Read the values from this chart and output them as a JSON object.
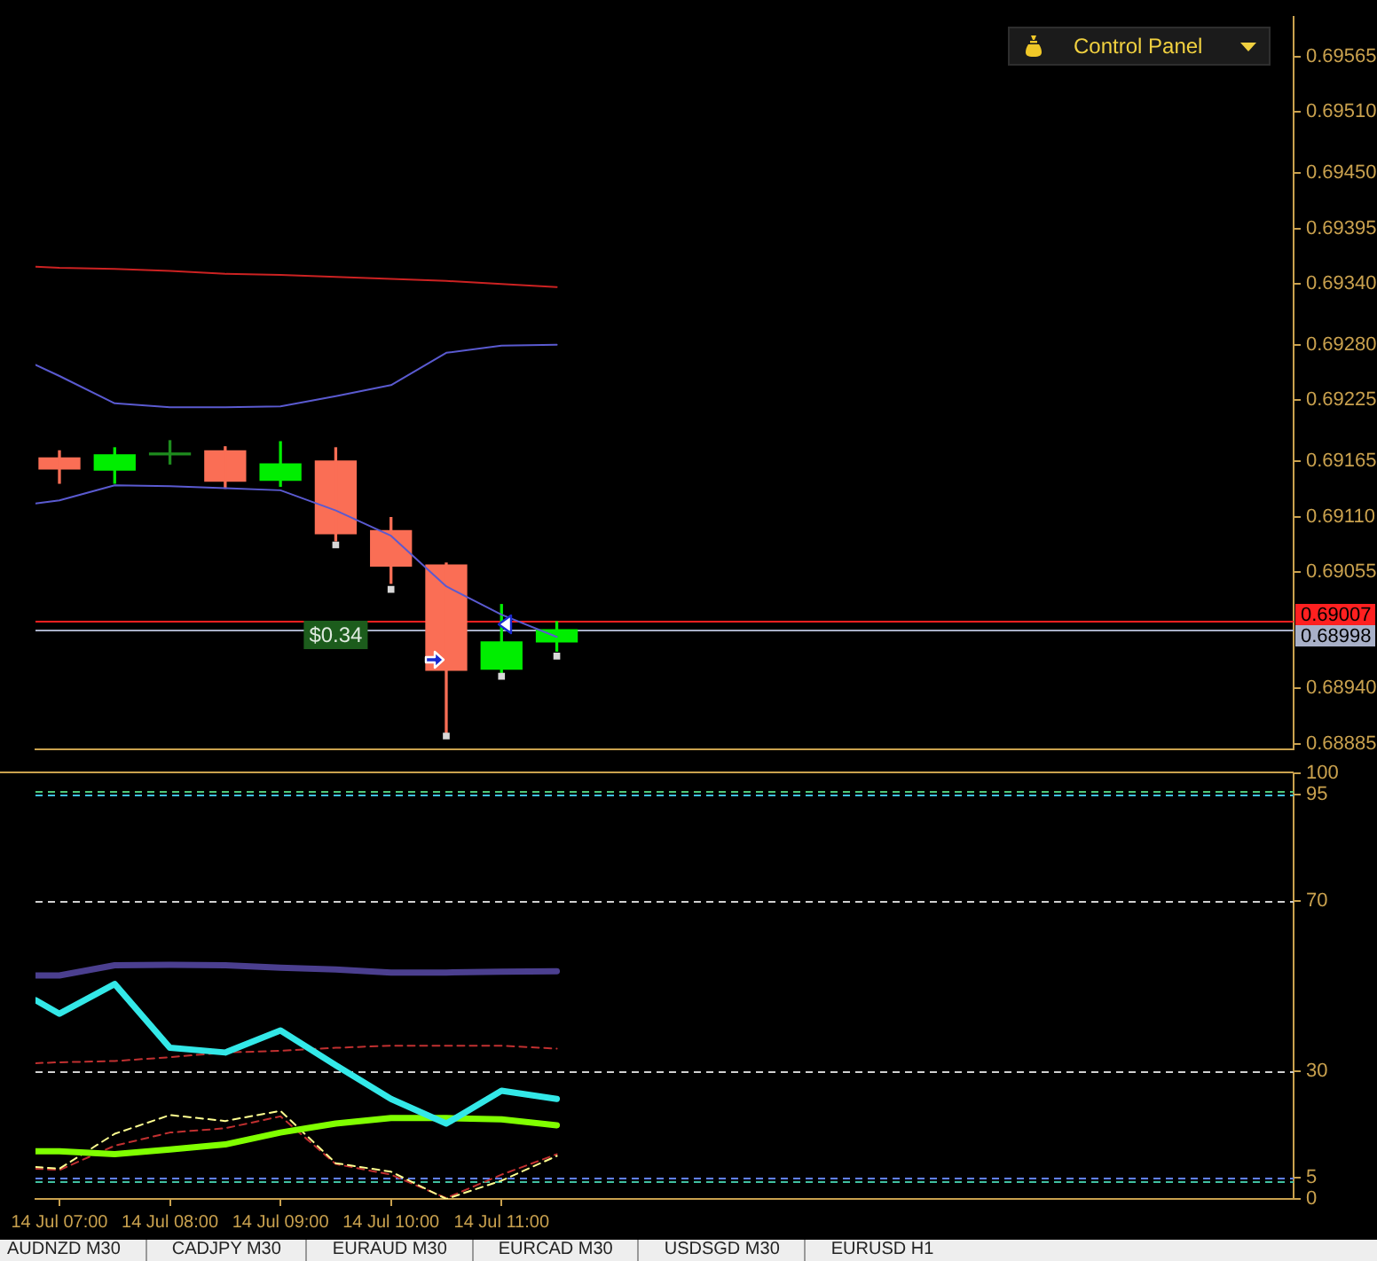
{
  "chart_data": [
    {
      "type": "candlestick",
      "x": [
        "--07-14T07:00",
        "--07-14T07:30",
        "--07-14T08:00",
        "--07-14T08:30",
        "--07-14T09:00",
        "--07-14T09:30",
        "--07-14T10:00",
        "--07-14T10:30",
        "--07-14T11:00",
        "--07-14T11:30"
      ],
      "ohlc": [
        [
          0.69168,
          0.69175,
          0.69143,
          0.69157
        ],
        [
          0.69156,
          0.69178,
          0.69143,
          0.69171
        ],
        [
          0.69171,
          0.69185,
          0.69162,
          0.69172
        ],
        [
          0.69175,
          0.69179,
          0.69138,
          0.69145
        ],
        [
          0.69146,
          0.69184,
          0.6914,
          0.69162
        ],
        [
          0.69165,
          0.69178,
          0.69086,
          0.69093
        ],
        [
          0.69096,
          0.69109,
          0.69044,
          0.69061
        ],
        [
          0.69062,
          0.69064,
          0.68896,
          0.68958
        ],
        [
          0.68959,
          0.69023,
          0.68951,
          0.68986
        ],
        [
          0.68986,
          0.69006,
          0.68977,
          0.68998
        ]
      ],
      "colors": [
        "#fa6e55",
        "#00ee00",
        "#1e8c1e",
        "#fa6e55",
        "#00ee00",
        "#fa6e55",
        "#fa6e55",
        "#fa6e55",
        "#00ee00",
        "#00ee00"
      ],
      "series": [
        {
          "type": "line",
          "color": "#cc2222",
          "x": [
            "--07-14T06:47",
            "--07-14T07:00",
            "--07-14T07:30",
            "--07-14T08:00",
            "--07-14T08:30",
            "--07-14T09:00",
            "--07-14T09:30",
            "--07-14T10:00",
            "--07-14T10:30",
            "--07-14T11:00",
            "--07-14T11:30"
          ],
          "values": [
            0.69357,
            0.69356,
            0.69355,
            0.69353,
            0.6935,
            0.69349,
            0.69347,
            0.69345,
            0.69343,
            0.6934,
            0.69337
          ]
        },
        {
          "type": "line",
          "color": "#5a5ad0",
          "x": [
            "--07-14T06:47",
            "--07-14T07:00",
            "--07-14T07:30",
            "--07-14T08:00",
            "--07-14T08:30",
            "--07-14T09:00",
            "--07-14T09:30",
            "--07-14T10:00",
            "--07-14T10:30",
            "--07-14T11:00",
            "--07-14T11:30"
          ],
          "values": [
            0.6926,
            0.69249,
            0.69222,
            0.69218,
            0.69218,
            0.69219,
            0.69229,
            0.6924,
            0.69272,
            0.69279,
            0.6928
          ]
        },
        {
          "type": "line",
          "color": "#5a5ad0",
          "x": [
            "--07-14T06:47",
            "--07-14T07:00",
            "--07-14T07:30",
            "--07-14T08:00",
            "--07-14T08:30",
            "--07-14T09:00",
            "--07-14T09:30",
            "--07-14T10:00",
            "--07-14T10:30",
            "--07-14T11:00",
            "--07-14T11:30"
          ],
          "values": [
            0.69123,
            0.69126,
            0.69141,
            0.6914,
            0.69138,
            0.69136,
            0.69116,
            0.69091,
            0.69041,
            0.69013,
            0.68991
          ]
        },
        {
          "type": "scatter",
          "color": "#d8d8d8",
          "marker": "square",
          "x": [
            "--07-14T09:30",
            "--07-14T10:00",
            "--07-14T10:30",
            "--07-14T11:00",
            "--07-14T11:30"
          ],
          "values": [
            0.69082,
            0.69038,
            0.68893,
            0.68952,
            0.68972
          ]
        }
      ],
      "xlim": [
        "--07-14T06:47",
        "--07-14T18:10"
      ],
      "ylim": [
        0.6888,
        0.69604
      ],
      "yticks": [
        0.68885,
        {
          "value": 0.6894,
          "label": "0.68940"
        },
        0.69055,
        {
          "value": 0.6911,
          "label": "0.69110"
        },
        0.69165,
        0.69225,
        {
          "value": 0.6928,
          "label": "0.69280"
        },
        {
          "value": 0.6934,
          "label": "0.69340"
        },
        0.69395,
        {
          "value": 0.6945,
          "label": "0.69450"
        },
        {
          "value": 0.6951,
          "label": "0.69510"
        },
        0.69565
      ],
      "tick_labels": "y",
      "ref_lines": [
        {
          "axis": "y",
          "value": 0.69007,
          "label": "0.69007",
          "color": "#ff2020"
        },
        {
          "axis": "y",
          "value": 0.68998,
          "label": "0.68998",
          "color": "#a8b0c8"
        }
      ],
      "annotations": [
        {
          "text": "$0.34",
          "x": "--07-14T09:30",
          "y": 0.68993
        },
        "Control Panel"
      ]
    },
    {
      "type": "line",
      "x": [
        "--07-14T06:47",
        "--07-14T07:00",
        "--07-14T07:30",
        "--07-14T08:00",
        "--07-14T08:30",
        "--07-14T09:00",
        "--07-14T09:30",
        "--07-14T10:00",
        "--07-14T10:30",
        "--07-14T11:00",
        "--07-14T11:30"
      ],
      "series": [
        {
          "color": "#4b3f8f",
          "values": [
            52.5,
            52.5,
            54.9,
            55.0,
            54.9,
            54.3,
            53.9,
            53.2,
            53.2,
            53.4,
            53.5
          ]
        },
        {
          "color": "#33e8e8",
          "values": [
            46.7,
            43.5,
            50.5,
            35.5,
            34.4,
            39.6,
            31.4,
            23.5,
            17.7,
            25.4,
            23.5
          ]
        },
        {
          "color": "#80ff00",
          "values": [
            11.2,
            11.2,
            10.5,
            11.6,
            12.8,
            15.6,
            17.7,
            19.0,
            19.0,
            18.7,
            17.3
          ]
        },
        {
          "color": "#c03030",
          "line_style": "dashed",
          "values": [
            31.9,
            32.1,
            32.4,
            33.3,
            34.4,
            34.8,
            35.5,
            36.0,
            36.0,
            36.0,
            35.3
          ]
        },
        {
          "color": "#ffff90",
          "line_style": "dashed",
          "values": [
            7.5,
            7.1,
            15.3,
            19.7,
            18.3,
            20.7,
            8.4,
            6.4,
            0,
            4.3,
            10.1
          ]
        },
        {
          "color": "#c03030",
          "line_style": "dashed",
          "values": [
            7.1,
            6.8,
            12.5,
            15.6,
            16.6,
            19.4,
            8.2,
            5.7,
            0.2,
            5.7,
            10.5
          ]
        }
      ],
      "xlim": [
        "--07-14T06:47",
        "--07-14T18:10"
      ],
      "ylim": [
        0,
        100
      ],
      "xticks": [
        {
          "value": "--07-14T07:00",
          "label": "14 Jul 07:00"
        },
        {
          "value": "--07-14T08:00",
          "label": "14 Jul 08:00"
        },
        {
          "value": "--07-14T09:00",
          "label": "14 Jul 09:00"
        },
        {
          "value": "--07-14T10:00",
          "label": "14 Jul 10:00"
        },
        {
          "value": "--07-14T11:00",
          "label": "14 Jul 11:00"
        }
      ],
      "yticks": [
        0,
        5,
        30,
        70,
        95,
        100
      ],
      "ref_lines": [
        {
          "axis": "y",
          "value": 96,
          "color": "#50c878",
          "line_style": "dashed"
        },
        {
          "axis": "y",
          "value": 95,
          "color": "#40c0e0",
          "line_style": "dashed"
        },
        {
          "axis": "y",
          "value": 70,
          "color": "#d0d0d0",
          "line_style": "dashed"
        },
        {
          "axis": "y",
          "value": 30,
          "color": "#d0d0d0",
          "line_style": "dashed"
        },
        {
          "axis": "y",
          "value": 5,
          "color": "#6080ff",
          "line_style": "dashed"
        },
        {
          "axis": "y",
          "value": 4,
          "color": "#40c0a0",
          "line_style": "dashed"
        }
      ],
      "annotations": [
        "AUDNZD M30",
        "CADJPY M30",
        "EURAUD M30",
        "EURCAD M30",
        "USDSGD M30",
        "EURUSD H1"
      ]
    }
  ]
}
